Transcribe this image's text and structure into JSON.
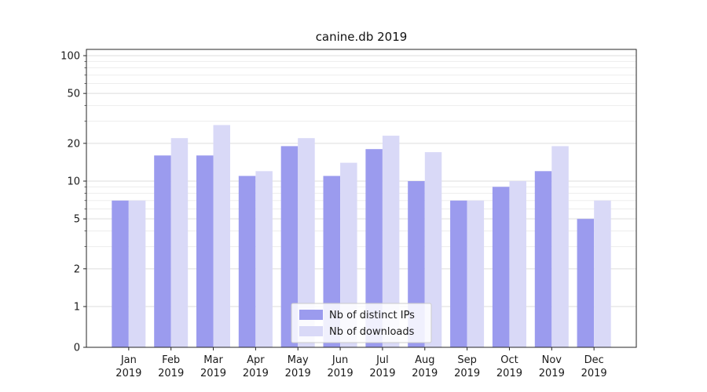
{
  "page": {
    "background": "#ffffff"
  },
  "chart_data": {
    "type": "bar",
    "title": "canine.db 2019",
    "categories": [
      "Jan\n2019",
      "Feb\n2019",
      "Mar\n2019",
      "Apr\n2019",
      "May\n2019",
      "Jun\n2019",
      "Jul\n2019",
      "Aug\n2019",
      "Sep\n2019",
      "Oct\n2019",
      "Nov\n2019",
      "Dec\n2019"
    ],
    "series": [
      {
        "name": "Nb of distinct IPs",
        "color": "#9b9bee",
        "values": [
          7,
          16,
          16,
          11,
          19,
          11,
          18,
          10,
          7,
          9,
          12,
          5
        ]
      },
      {
        "name": "Nb of downloads",
        "color": "#d9d9f7",
        "values": [
          7,
          22,
          28,
          12,
          22,
          14,
          23,
          17,
          7,
          10,
          19,
          7
        ]
      }
    ],
    "yscale": "symlog",
    "yticks": [
      0,
      1,
      2,
      5,
      10,
      20,
      50,
      100
    ],
    "ylim": [
      0,
      110
    ],
    "grid": true,
    "legend": {
      "position": "bottom-center",
      "entries": [
        "Nb of distinct IPs",
        "Nb of downloads"
      ]
    },
    "axis_color": "#262626",
    "grid_color_major": "#dedede",
    "grid_color_minor": "#ededed",
    "text_color": "#1a1a1a"
  }
}
